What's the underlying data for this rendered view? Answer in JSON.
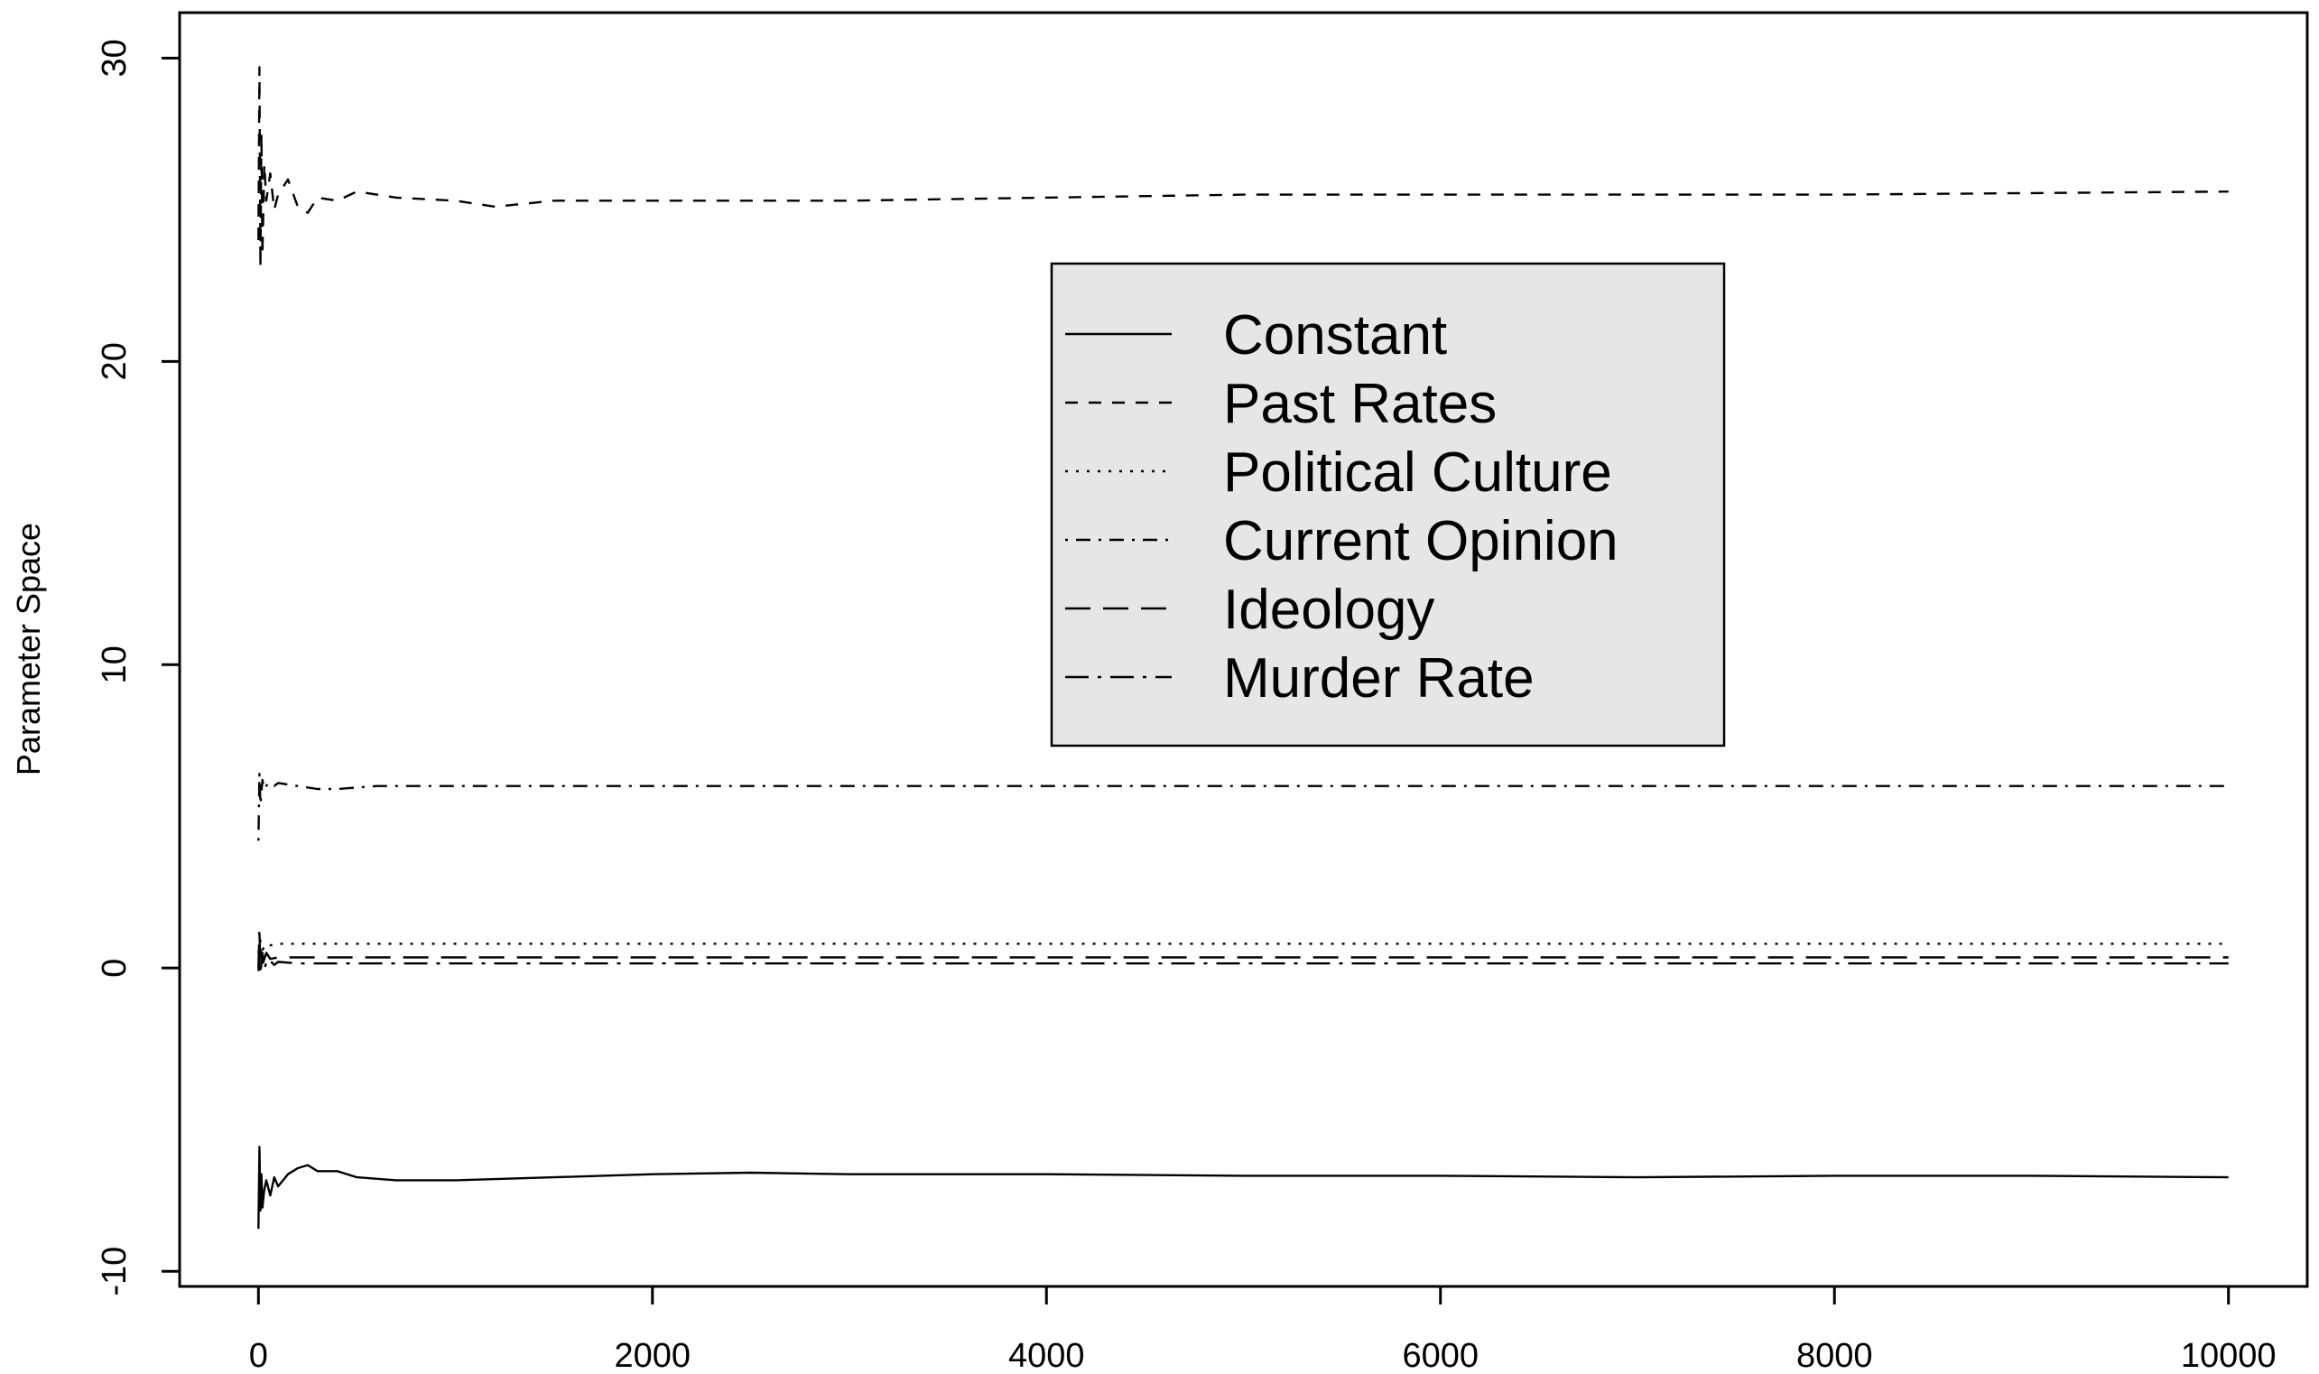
{
  "chart_data": {
    "type": "line",
    "title": "",
    "xlabel": "",
    "ylabel": "Parameter Space",
    "xlim": [
      -400,
      10400
    ],
    "ylim": [
      -10.5,
      31.5
    ],
    "xticks": [
      0,
      2000,
      4000,
      6000,
      8000,
      10000
    ],
    "xtick_labels": [
      "0",
      "2000",
      "4000",
      "6000",
      "8000",
      "10000"
    ],
    "yticks": [
      -10,
      0,
      10,
      20,
      30
    ],
    "ytick_labels": [
      "-10",
      "0",
      "10",
      "20",
      "30"
    ],
    "grid": false,
    "legend_position": "top-center",
    "legend_background": "#e6e6e6",
    "line_color": "#000000",
    "series": [
      {
        "name": "Constant",
        "dash": "solid",
        "x": [
          0,
          5,
          10,
          15,
          20,
          30,
          40,
          60,
          80,
          100,
          150,
          200,
          250,
          300,
          400,
          500,
          700,
          1000,
          1500,
          2000,
          2500,
          3000,
          4000,
          5000,
          6000,
          7000,
          8000,
          9000,
          10000
        ],
        "y": [
          -8.6,
          -5.9,
          -8.0,
          -6.8,
          -7.9,
          -7.3,
          -7.0,
          -7.5,
          -6.9,
          -7.2,
          -6.8,
          -6.6,
          -6.5,
          -6.7,
          -6.7,
          -6.9,
          -7.0,
          -7.0,
          -6.9,
          -6.8,
          -6.75,
          -6.8,
          -6.8,
          -6.85,
          -6.85,
          -6.9,
          -6.85,
          -6.85,
          -6.9
        ]
      },
      {
        "name": "Past Rates",
        "dash": "short-dash",
        "x": [
          0,
          5,
          10,
          15,
          20,
          30,
          40,
          60,
          80,
          100,
          150,
          200,
          250,
          300,
          400,
          500,
          700,
          1000,
          1200,
          1500,
          2000,
          3000,
          4000,
          5000,
          6000,
          7000,
          8000,
          9000,
          10000
        ],
        "y": [
          24.0,
          29.7,
          23.1,
          27.5,
          23.5,
          26.5,
          25.3,
          26.2,
          25.0,
          25.5,
          26.0,
          25.1,
          24.9,
          25.4,
          25.3,
          25.6,
          25.4,
          25.3,
          25.1,
          25.3,
          25.3,
          25.3,
          25.4,
          25.5,
          25.5,
          25.5,
          25.5,
          25.55,
          25.6
        ]
      },
      {
        "name": "Political Culture",
        "dash": "dotted",
        "x": [
          0,
          10,
          20,
          40,
          60,
          100,
          200,
          500,
          1000,
          2000,
          4000,
          6000,
          8000,
          10000
        ],
        "y": [
          0.5,
          0.9,
          0.6,
          0.8,
          0.75,
          0.8,
          0.8,
          0.8,
          0.8,
          0.8,
          0.8,
          0.8,
          0.8,
          0.8
        ]
      },
      {
        "name": "Current Opinion",
        "dash": "dash-dot",
        "x": [
          0,
          5,
          10,
          20,
          30,
          50,
          80,
          100,
          200,
          300,
          400,
          600,
          800,
          1000,
          2000,
          3000,
          4000,
          5000,
          6000,
          7000,
          8000,
          9000,
          10000
        ],
        "y": [
          4.2,
          6.4,
          5.4,
          6.2,
          5.9,
          6.1,
          6.0,
          6.1,
          6.0,
          5.9,
          5.9,
          6.0,
          6.0,
          6.0,
          6.0,
          6.0,
          6.0,
          6.0,
          6.0,
          6.0,
          6.0,
          6.0,
          6.0
        ]
      },
      {
        "name": "Ideology",
        "dash": "long-dash",
        "x": [
          0,
          10,
          20,
          40,
          60,
          100,
          200,
          500,
          1000,
          2000,
          4000,
          6000,
          8000,
          10000
        ],
        "y": [
          -0.1,
          0.6,
          0.1,
          0.5,
          0.3,
          0.35,
          0.35,
          0.35,
          0.35,
          0.35,
          0.35,
          0.35,
          0.35,
          0.35
        ]
      },
      {
        "name": "Murder Rate",
        "dash": "dash-dot-long",
        "x": [
          0,
          5,
          10,
          20,
          30,
          50,
          80,
          100,
          200,
          500,
          1000,
          2000,
          4000,
          6000,
          8000,
          10000
        ],
        "y": [
          0.0,
          1.3,
          -0.2,
          0.5,
          0.0,
          0.3,
          0.1,
          0.2,
          0.15,
          0.15,
          0.15,
          0.15,
          0.15,
          0.15,
          0.15,
          0.15
        ]
      }
    ]
  }
}
